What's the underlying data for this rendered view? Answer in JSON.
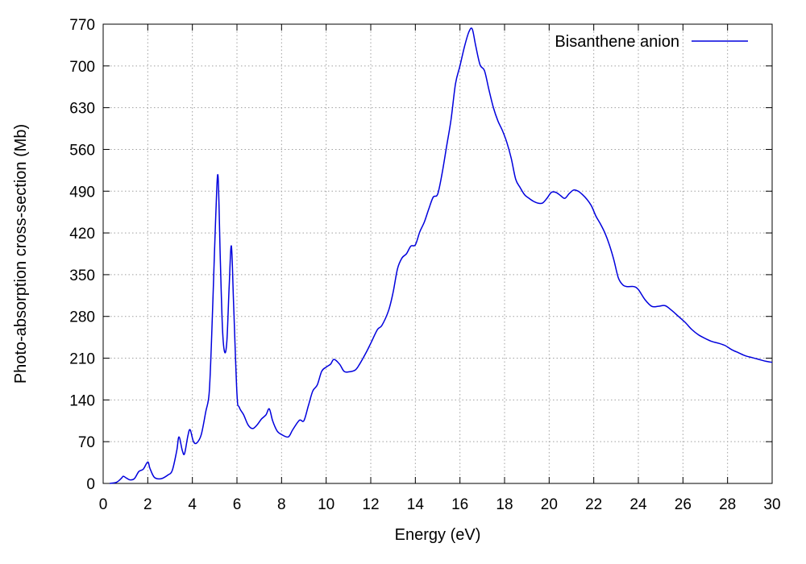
{
  "chart_data": {
    "type": "line",
    "xlabel": "Energy (eV)",
    "ylabel": "Photo-absorption cross-section (Mb)",
    "xlim": [
      0,
      30
    ],
    "ylim": [
      0,
      770
    ],
    "xticks": [
      0,
      2,
      4,
      6,
      8,
      10,
      12,
      14,
      16,
      18,
      20,
      22,
      24,
      26,
      28,
      30
    ],
    "yticks": [
      0,
      70,
      140,
      210,
      280,
      350,
      420,
      490,
      560,
      630,
      700,
      770
    ],
    "grid": true,
    "legend": "top-right",
    "series": [
      {
        "name": "Bisanthene anion",
        "color": "#0000dd",
        "points": [
          [
            0.3,
            0
          ],
          [
            0.6,
            2
          ],
          [
            0.8,
            8
          ],
          [
            0.9,
            12
          ],
          [
            1.0,
            10
          ],
          [
            1.2,
            6
          ],
          [
            1.4,
            8
          ],
          [
            1.6,
            20
          ],
          [
            1.8,
            24
          ],
          [
            2.0,
            36
          ],
          [
            2.1,
            25
          ],
          [
            2.3,
            10
          ],
          [
            2.6,
            8
          ],
          [
            2.9,
            14
          ],
          [
            3.1,
            22
          ],
          [
            3.3,
            55
          ],
          [
            3.4,
            78
          ],
          [
            3.55,
            55
          ],
          [
            3.65,
            50
          ],
          [
            3.8,
            80
          ],
          [
            3.9,
            90
          ],
          [
            4.05,
            70
          ],
          [
            4.2,
            68
          ],
          [
            4.4,
            82
          ],
          [
            4.6,
            120
          ],
          [
            4.75,
            150
          ],
          [
            4.85,
            230
          ],
          [
            4.95,
            340
          ],
          [
            5.05,
            450
          ],
          [
            5.15,
            516
          ],
          [
            5.25,
            380
          ],
          [
            5.35,
            260
          ],
          [
            5.45,
            220
          ],
          [
            5.55,
            240
          ],
          [
            5.65,
            330
          ],
          [
            5.75,
            398
          ],
          [
            5.85,
            300
          ],
          [
            6.0,
            150
          ],
          [
            6.1,
            128
          ],
          [
            6.3,
            115
          ],
          [
            6.5,
            98
          ],
          [
            6.7,
            92
          ],
          [
            6.9,
            98
          ],
          [
            7.1,
            108
          ],
          [
            7.3,
            115
          ],
          [
            7.45,
            125
          ],
          [
            7.6,
            105
          ],
          [
            7.8,
            88
          ],
          [
            8.0,
            82
          ],
          [
            8.3,
            78
          ],
          [
            8.5,
            90
          ],
          [
            8.8,
            106
          ],
          [
            9.0,
            105
          ],
          [
            9.2,
            130
          ],
          [
            9.4,
            155
          ],
          [
            9.6,
            165
          ],
          [
            9.8,
            188
          ],
          [
            10.0,
            195
          ],
          [
            10.2,
            200
          ],
          [
            10.35,
            208
          ],
          [
            10.6,
            200
          ],
          [
            10.8,
            188
          ],
          [
            11.0,
            187
          ],
          [
            11.3,
            190
          ],
          [
            11.5,
            200
          ],
          [
            11.8,
            220
          ],
          [
            12.0,
            235
          ],
          [
            12.3,
            258
          ],
          [
            12.5,
            265
          ],
          [
            12.8,
            290
          ],
          [
            13.0,
            320
          ],
          [
            13.2,
            360
          ],
          [
            13.4,
            378
          ],
          [
            13.6,
            385
          ],
          [
            13.8,
            398
          ],
          [
            14.0,
            400
          ],
          [
            14.2,
            422
          ],
          [
            14.4,
            438
          ],
          [
            14.6,
            460
          ],
          [
            14.8,
            480
          ],
          [
            15.0,
            485
          ],
          [
            15.2,
            520
          ],
          [
            15.4,
            565
          ],
          [
            15.6,
            610
          ],
          [
            15.8,
            670
          ],
          [
            16.0,
            700
          ],
          [
            16.2,
            732
          ],
          [
            16.4,
            757
          ],
          [
            16.55,
            762
          ],
          [
            16.7,
            735
          ],
          [
            16.9,
            702
          ],
          [
            17.1,
            692
          ],
          [
            17.3,
            660
          ],
          [
            17.5,
            630
          ],
          [
            17.7,
            608
          ],
          [
            17.9,
            592
          ],
          [
            18.1,
            572
          ],
          [
            18.3,
            545
          ],
          [
            18.5,
            510
          ],
          [
            18.7,
            496
          ],
          [
            18.9,
            484
          ],
          [
            19.1,
            478
          ],
          [
            19.3,
            473
          ],
          [
            19.5,
            470
          ],
          [
            19.7,
            470
          ],
          [
            19.9,
            478
          ],
          [
            20.1,
            488
          ],
          [
            20.3,
            488
          ],
          [
            20.5,
            483
          ],
          [
            20.7,
            478
          ],
          [
            20.9,
            486
          ],
          [
            21.1,
            492
          ],
          [
            21.3,
            490
          ],
          [
            21.5,
            484
          ],
          [
            21.7,
            476
          ],
          [
            21.9,
            465
          ],
          [
            22.1,
            448
          ],
          [
            22.3,
            435
          ],
          [
            22.5,
            420
          ],
          [
            22.7,
            400
          ],
          [
            22.9,
            375
          ],
          [
            23.1,
            345
          ],
          [
            23.3,
            333
          ],
          [
            23.5,
            330
          ],
          [
            23.8,
            330
          ],
          [
            24.0,
            325
          ],
          [
            24.3,
            308
          ],
          [
            24.6,
            297
          ],
          [
            24.9,
            297
          ],
          [
            25.2,
            298
          ],
          [
            25.5,
            290
          ],
          [
            25.8,
            280
          ],
          [
            26.1,
            270
          ],
          [
            26.4,
            258
          ],
          [
            26.7,
            249
          ],
          [
            27.0,
            243
          ],
          [
            27.3,
            238
          ],
          [
            27.6,
            235
          ],
          [
            27.9,
            231
          ],
          [
            28.2,
            224
          ],
          [
            28.5,
            219
          ],
          [
            28.8,
            214
          ],
          [
            29.1,
            211
          ],
          [
            29.4,
            208
          ],
          [
            29.7,
            205
          ],
          [
            30.0,
            203
          ]
        ]
      }
    ]
  }
}
